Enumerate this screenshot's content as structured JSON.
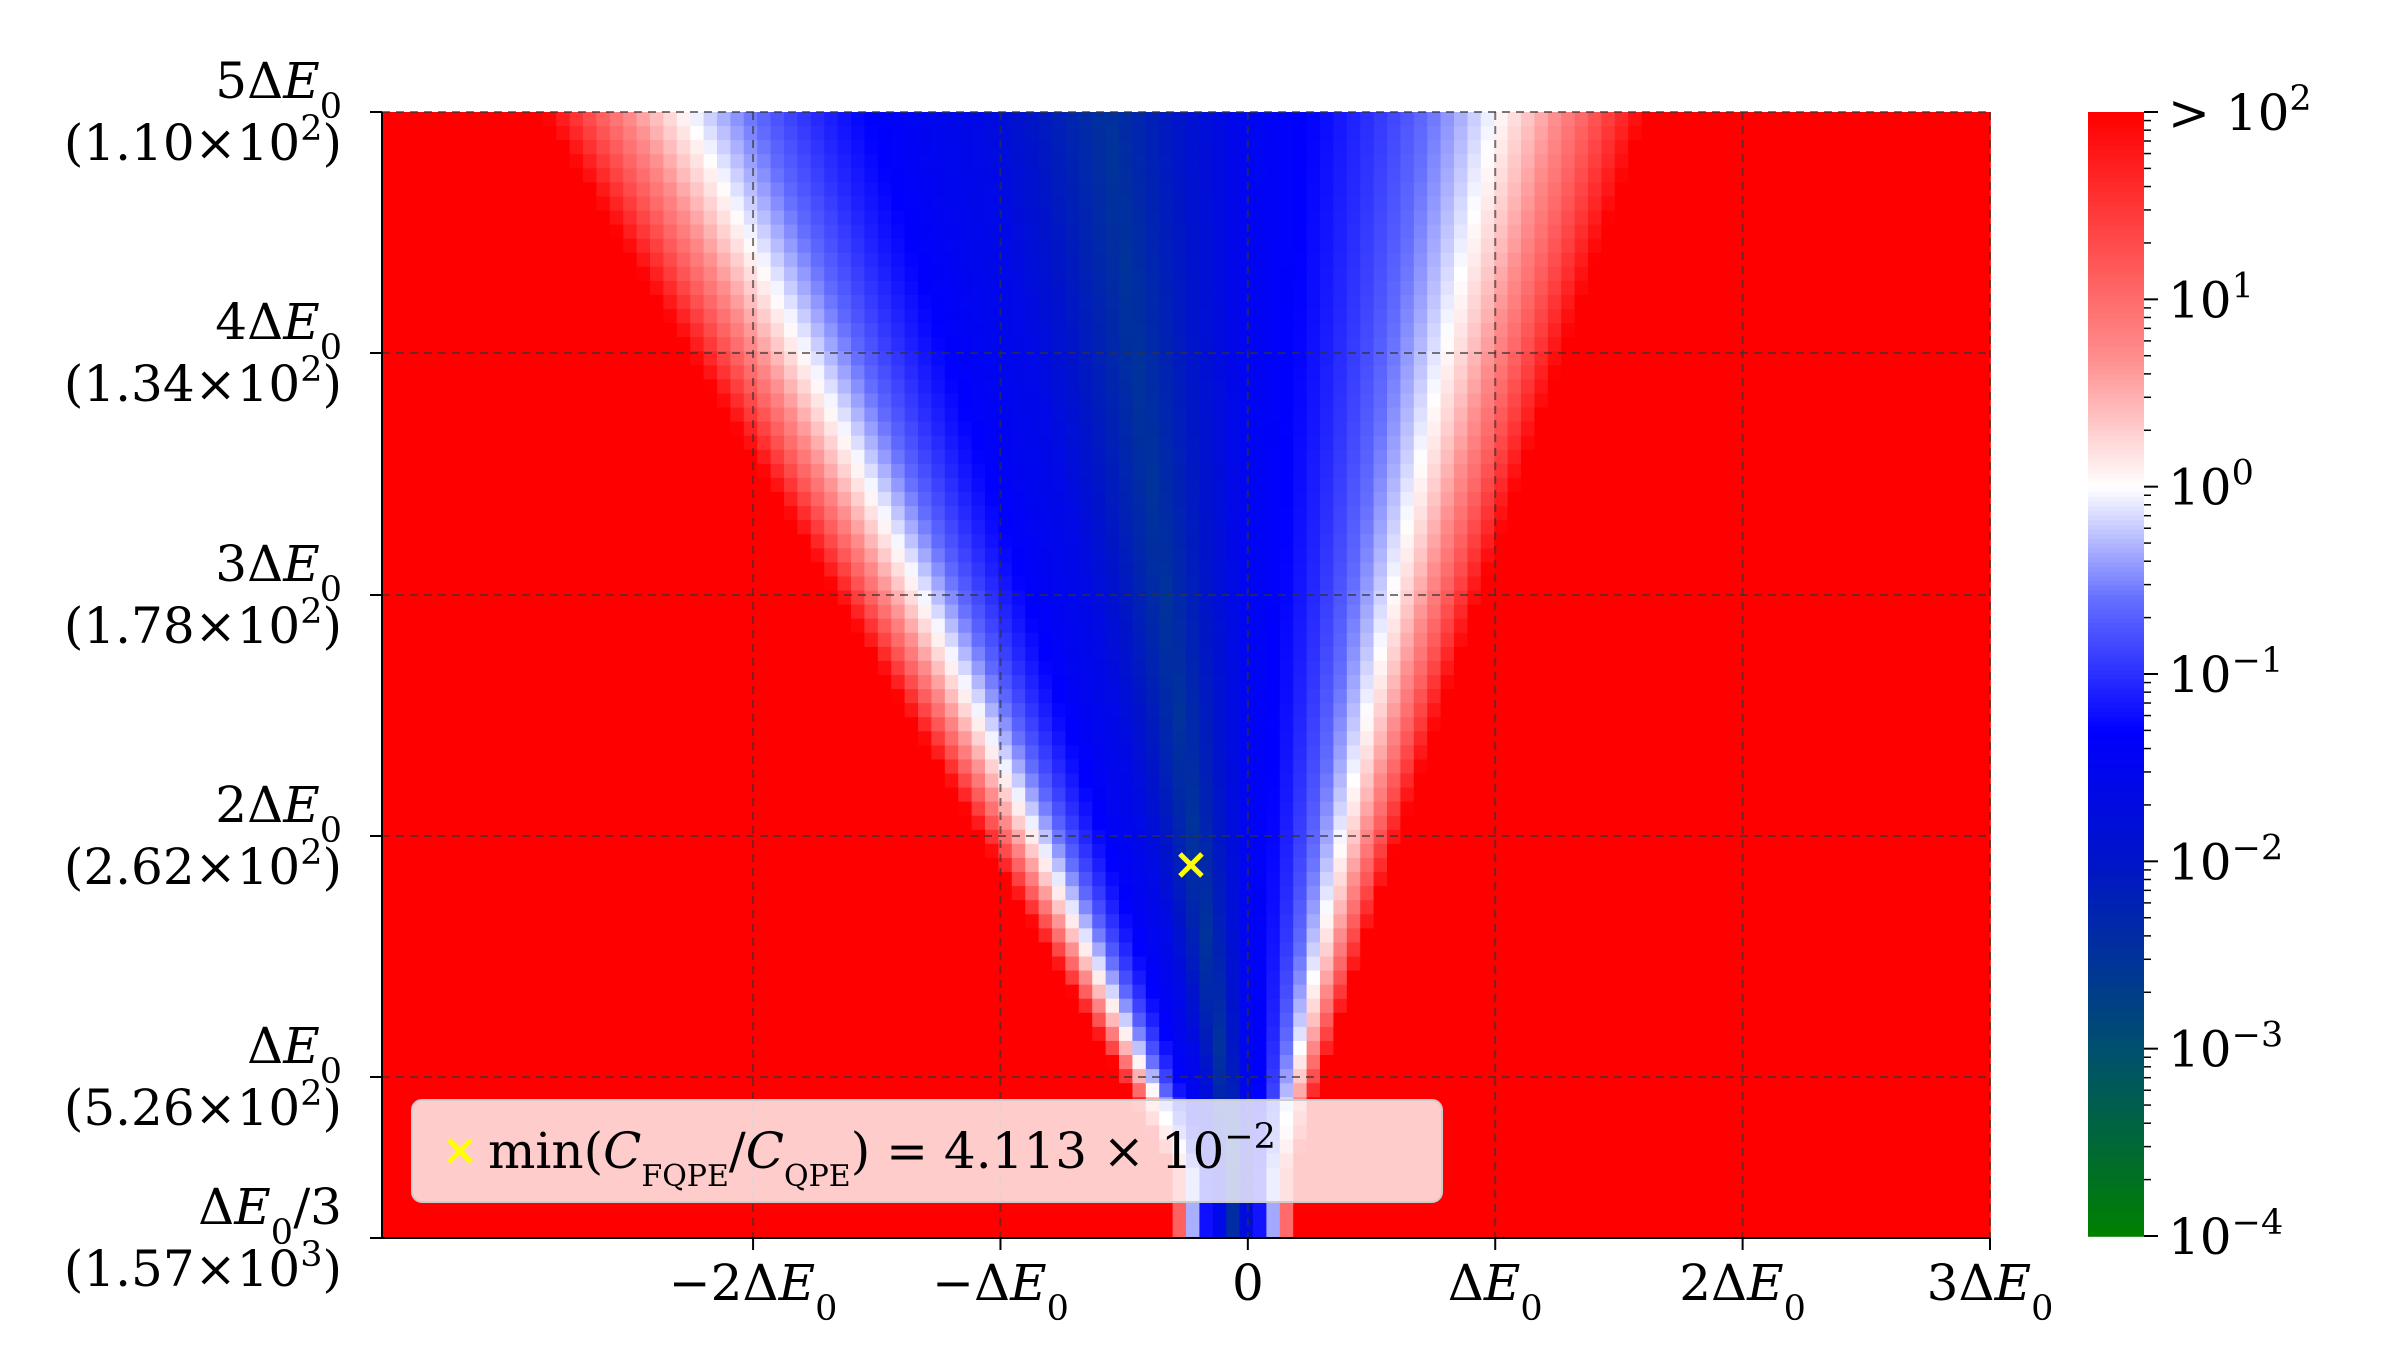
{
  "chart_data": {
    "type": "heatmap",
    "title": "",
    "xlabel": "",
    "ylabel": "",
    "xlim": [
      -3.5,
      3.0
    ],
    "ylim": [
      0.333,
      5.0
    ],
    "x_unit": "ΔE0",
    "y_unit": "ΔE0",
    "x_ticks": [
      {
        "value": -2,
        "label": "−2ΔE0"
      },
      {
        "value": -1,
        "label": "−ΔE0"
      },
      {
        "value": 0,
        "label": "0"
      },
      {
        "value": 1,
        "label": "ΔE0"
      },
      {
        "value": 2,
        "label": "2ΔE0"
      },
      {
        "value": 3,
        "label": "3ΔE0"
      }
    ],
    "y_ticks": [
      {
        "value": 5,
        "label": "5ΔE0",
        "sublabel": "(1.10×10^2)"
      },
      {
        "value": 4,
        "label": "4ΔE0",
        "sublabel": "(1.34×10^2)"
      },
      {
        "value": 3,
        "label": "3ΔE0",
        "sublabel": "(1.78×10^2)"
      },
      {
        "value": 2,
        "label": "2ΔE0",
        "sublabel": "(2.62×10^2)"
      },
      {
        "value": 1,
        "label": "ΔE0",
        "sublabel": "(5.26×10^2)"
      },
      {
        "value": 0.333,
        "label": "ΔE0/3",
        "sublabel": "(1.57×10^3)"
      }
    ],
    "grid": true,
    "colorbar": {
      "scale": "log",
      "range": [
        0.0001,
        100.0
      ],
      "ticks": [
        {
          "exp": 2,
          "label": "> 10^2"
        },
        {
          "exp": 1,
          "label": "10^1"
        },
        {
          "exp": 0,
          "label": "10^0"
        },
        {
          "exp": -1,
          "label": "10^−1"
        },
        {
          "exp": -2,
          "label": "10^−2"
        },
        {
          "exp": -3,
          "label": "10^−3"
        },
        {
          "exp": -4,
          "label": "10^−4"
        }
      ],
      "colors": {
        "top": "#ff0000",
        "center": "#ffffff",
        "mid_low": "#0000ff",
        "bottom": "#008000"
      }
    },
    "minimum_marker": {
      "x": -0.23,
      "y": 1.88,
      "color": "#ffff00",
      "legend_label": "min(C_FQPE/C_QPE) = 4.113 × 10^−2",
      "legend_location": "lower-left"
    }
  }
}
